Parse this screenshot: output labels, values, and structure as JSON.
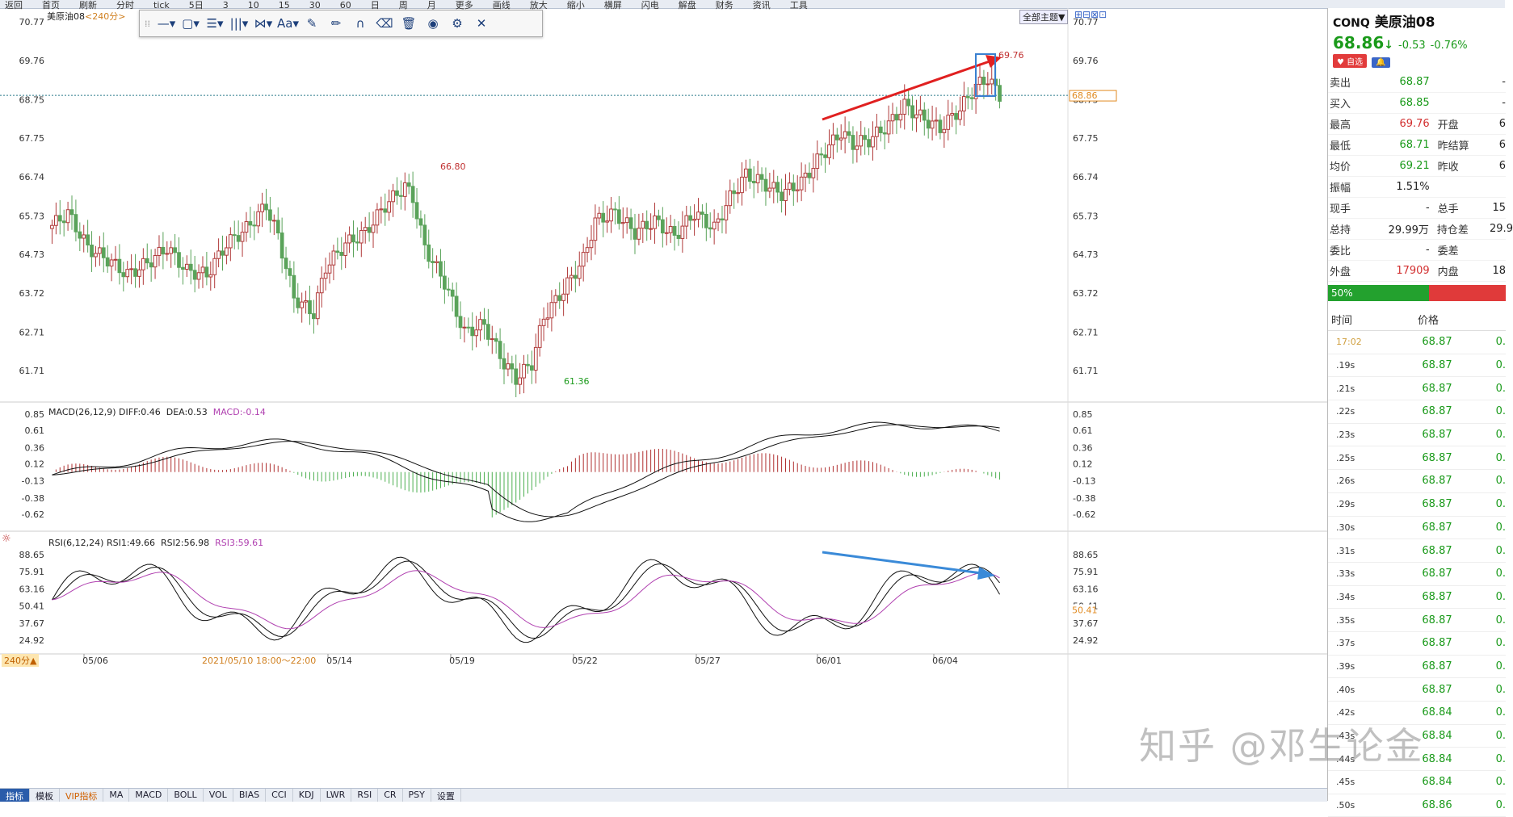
{
  "app": {
    "top_menu": [
      "返回",
      "首页",
      "刷新",
      "分时",
      "tick",
      "5日",
      "3",
      "10",
      "15",
      "30",
      "60",
      "日",
      "周",
      "月",
      "更多",
      "画线",
      "放大",
      "缩小",
      "横屏",
      "闪电",
      "解盘",
      "财务",
      "资讯",
      "工具"
    ],
    "instrument_label": "美原油08",
    "period_label": "<240分>",
    "theme_button": "全部主题▼"
  },
  "draw_toolbar": {
    "tools": [
      {
        "name": "line-tool",
        "glyph": "—▾"
      },
      {
        "name": "shape-tool",
        "glyph": "▢▾"
      },
      {
        "name": "fib-tool",
        "glyph": "☰▾"
      },
      {
        "name": "cycle-tool",
        "glyph": "|||▾"
      },
      {
        "name": "pattern-tool",
        "glyph": "⋈▾"
      },
      {
        "name": "text-tool",
        "glyph": "Aa▾"
      },
      {
        "name": "ruler-tool",
        "glyph": "✎"
      },
      {
        "name": "pencil-tool",
        "glyph": "✏"
      },
      {
        "name": "magnet-tool",
        "glyph": "∩"
      },
      {
        "name": "eraser-tool",
        "glyph": "⌫"
      },
      {
        "name": "trash-tool",
        "glyph": "🗑"
      },
      {
        "name": "eye-tool",
        "glyph": "◉"
      },
      {
        "name": "settings-tool",
        "glyph": "⚙"
      },
      {
        "name": "close-tool",
        "glyph": "✕"
      }
    ]
  },
  "price_pane": {
    "y_ticks": [
      "70.77",
      "69.76",
      "68.75",
      "67.75",
      "66.74",
      "65.73",
      "64.73",
      "63.72",
      "62.71",
      "61.71"
    ],
    "current_price_tag": "68.86",
    "high_label": "66.80",
    "low_label": "61.36",
    "peak_label": "69.76"
  },
  "macd_pane": {
    "title": "MACD(26,12,9)",
    "diff": "DIFF:0.46",
    "dea": "DEA:0.53",
    "macd": "MACD:-0.14",
    "y_ticks": [
      "0.85",
      "0.61",
      "0.36",
      "0.12",
      "-0.13",
      "-0.38",
      "-0.62"
    ]
  },
  "rsi_pane": {
    "title": "RSI(6,12,24)",
    "rsi1": "RSI1:49.66",
    "rsi2": "RSI2:56.98",
    "rsi3": "RSI3:59.61",
    "y_ticks": [
      "88.65",
      "75.91",
      "63.16",
      "50.41",
      "37.67",
      "24.92"
    ],
    "current_tag": "50.41"
  },
  "x_axis": {
    "labels": [
      "05/06",
      "05/14",
      "05/19",
      "05/22",
      "05/27",
      "06/01",
      "06/04"
    ],
    "period_tag": "240分▲",
    "hover_time": "2021/05/10 18:00～22:00"
  },
  "bottom_tabs": [
    "指标",
    "模板",
    "VIP指标",
    "MA",
    "MACD",
    "BOLL",
    "VOL",
    "BIAS",
    "CCI",
    "KDJ",
    "LWR",
    "RSI",
    "CR",
    "PSY",
    "设置"
  ],
  "quote_panel": {
    "code": "CONQ",
    "name": "美原油08",
    "price": "68.86",
    "arrow": "↓",
    "change": "-0.53",
    "change_pct": "-0.76%",
    "tag_watch": "♥ 自选",
    "tag_alert": "🔔",
    "rows": [
      {
        "l1": "卖出",
        "v1": "68.87",
        "l2": "",
        "v2": "-"
      },
      {
        "l1": "买入",
        "v1": "68.85",
        "l2": "",
        "v2": "-"
      },
      {
        "l1": "最高",
        "v1": "69.76",
        "l2": "开盘",
        "v2": "6"
      },
      {
        "l1": "最低",
        "v1": "68.71",
        "l2": "昨结算",
        "v2": "6"
      },
      {
        "l1": "均价",
        "v1": "69.21",
        "l2": "昨收",
        "v2": "6"
      },
      {
        "l1": "振幅",
        "v1": "1.51%",
        "l2": "",
        "v2": ""
      },
      {
        "l1": "现手",
        "v1": "-",
        "l2": "总手",
        "v2": "15"
      },
      {
        "l1": "总持",
        "v1": "29.99万",
        "l2": "持仓差",
        "v2": "29.9"
      },
      {
        "l1": "委比",
        "v1": "-",
        "l2": "委差",
        "v2": ""
      },
      {
        "l1": "外盘",
        "v1": "17909",
        "l2": "内盘",
        "v2": "18"
      }
    ],
    "ratio_label": "50%",
    "tick_headers": [
      "时间",
      "价格"
    ],
    "ticks": [
      {
        "t": "17:02",
        "p": "68.87",
        "v": "0."
      },
      {
        "t": ".19s",
        "p": "68.87",
        "v": "0."
      },
      {
        "t": ".21s",
        "p": "68.87",
        "v": "0."
      },
      {
        "t": ".22s",
        "p": "68.87",
        "v": "0."
      },
      {
        "t": ".23s",
        "p": "68.87",
        "v": "0."
      },
      {
        "t": ".25s",
        "p": "68.87",
        "v": "0."
      },
      {
        "t": ".26s",
        "p": "68.87",
        "v": "0."
      },
      {
        "t": ".29s",
        "p": "68.87",
        "v": "0."
      },
      {
        "t": ".30s",
        "p": "68.87",
        "v": "0."
      },
      {
        "t": ".31s",
        "p": "68.87",
        "v": "0."
      },
      {
        "t": ".33s",
        "p": "68.87",
        "v": "0."
      },
      {
        "t": ".34s",
        "p": "68.87",
        "v": "0."
      },
      {
        "t": ".35s",
        "p": "68.87",
        "v": "0."
      },
      {
        "t": ".37s",
        "p": "68.87",
        "v": "0."
      },
      {
        "t": ".39s",
        "p": "68.87",
        "v": "0."
      },
      {
        "t": ".40s",
        "p": "68.87",
        "v": "0."
      },
      {
        "t": ".42s",
        "p": "68.84",
        "v": "0."
      },
      {
        "t": ".43s",
        "p": "68.84",
        "v": "0."
      },
      {
        "t": ".44s",
        "p": "68.84",
        "v": "0."
      },
      {
        "t": ".45s",
        "p": "68.84",
        "v": "0."
      },
      {
        "t": ".50s",
        "p": "68.86",
        "v": "0."
      }
    ]
  },
  "watermark": "知乎 @邓生论金",
  "colors": {
    "up": "#c0392b",
    "down": "#5aa35a",
    "macd_red": "#b03030",
    "macd_green": "#4caf50",
    "rsi3": "#b040b0",
    "arrow_red": "#e02020",
    "arrow_blue": "#3a8ad8"
  }
}
